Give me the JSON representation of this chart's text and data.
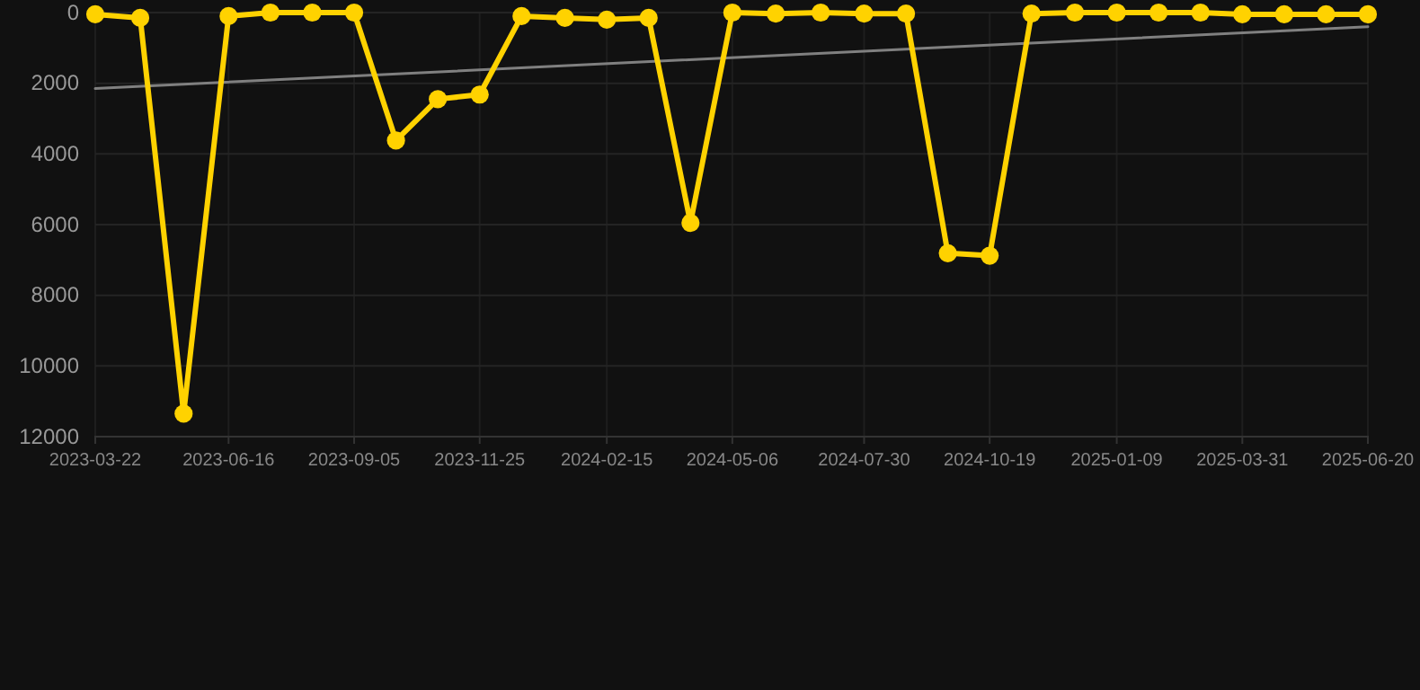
{
  "chart_data": {
    "type": "line",
    "x": [
      "2023-03-22",
      "2023-04-20",
      "2023-05-18",
      "2023-06-16",
      "2023-07-13",
      "2023-08-09",
      "2023-09-05",
      "2023-10-02",
      "2023-10-29",
      "2023-11-25",
      "2023-12-22",
      "2024-01-19",
      "2024-02-15",
      "2024-03-13",
      "2024-04-09",
      "2024-05-06",
      "2024-06-03",
      "2024-07-02",
      "2024-07-30",
      "2024-08-26",
      "2024-09-22",
      "2024-10-19",
      "2024-11-15",
      "2024-12-13",
      "2025-01-09",
      "2025-02-05",
      "2025-03-04",
      "2025-03-31",
      "2025-04-27",
      "2025-05-24",
      "2025-06-20"
    ],
    "series": [
      {
        "color": "#ffd200",
        "marker": "circle",
        "values": [
          50,
          150,
          11350,
          100,
          0,
          0,
          0,
          3620,
          2450,
          2320,
          100,
          150,
          200,
          150,
          5950,
          0,
          30,
          0,
          30,
          30,
          6810,
          6880,
          30,
          0,
          0,
          0,
          0,
          50,
          50,
          50,
          50
        ]
      },
      {
        "type": "line",
        "color": "#808080",
        "marker": "none",
        "x": [
          "2023-03-22",
          "2025-06-20"
        ],
        "values": [
          2150,
          400
        ]
      }
    ],
    "xlim": [
      "2023-03-22",
      "2025-06-20"
    ],
    "xticks": [
      {
        "value": "2023-03-22",
        "label": "2023-03-22"
      },
      {
        "value": "2023-06-16",
        "label": "2023-06-16"
      },
      {
        "value": "2023-09-05",
        "label": "2023-09-05"
      },
      {
        "value": "2023-11-25",
        "label": "2023-11-25"
      },
      {
        "value": "2024-02-15",
        "label": "2024-02-15"
      },
      {
        "value": "2024-05-06",
        "label": "2024-05-06"
      },
      {
        "value": "2024-07-30",
        "label": "2024-07-30"
      },
      {
        "value": "2024-10-19",
        "label": "2024-10-19"
      },
      {
        "value": "2025-01-09",
        "label": "2025-01-09"
      },
      {
        "value": "2025-03-31",
        "label": "2025-03-31"
      },
      {
        "value": "2025-06-20",
        "label": "2025-06-20"
      }
    ],
    "ylim": [
      12000,
      0
    ],
    "yticks": [
      0,
      2000,
      4000,
      6000,
      8000,
      10000,
      12000
    ],
    "grid": true,
    "line_style": "solid"
  }
}
